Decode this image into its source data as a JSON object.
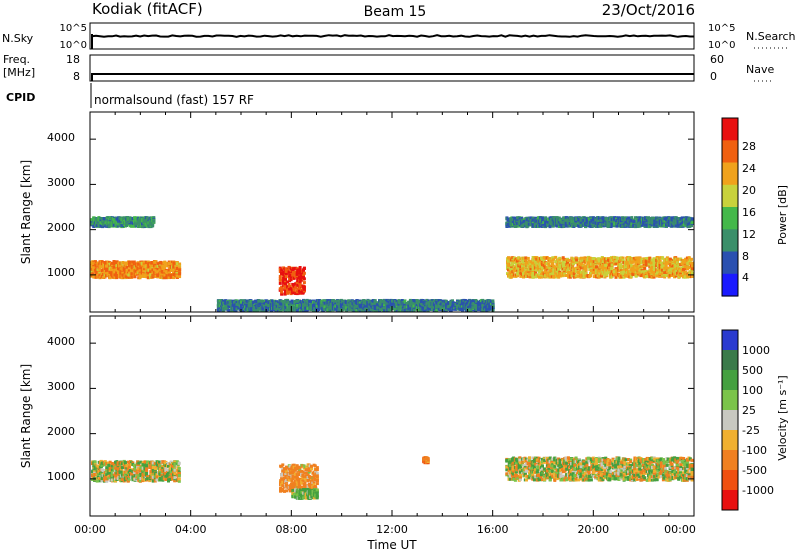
{
  "header": {
    "station": "Kodiak (fitACF)",
    "beam": "Beam 15",
    "date": "23/Oct/2016"
  },
  "strips": {
    "nsky_label": "N.Sky",
    "nsky_ticks": [
      "10^5",
      "10^0"
    ],
    "nsearch_label": "N.Search",
    "nsearch_ticks": [
      "10^5",
      "10^0"
    ],
    "freq_label_1": "Freq.",
    "freq_label_2": "[MHz]",
    "freq_ticks": [
      "18",
      "8"
    ],
    "nave_label": "Nave",
    "nave_ticks": [
      "60",
      "0"
    ],
    "cpid_label": "CPID",
    "cpid_text": "normalsound (fast) 157 RF"
  },
  "power_panel": {
    "ylabel": "Slant Range [km]",
    "yticks": [
      "4000",
      "3000",
      "2000",
      "1000"
    ],
    "colorbar_label": "Power [dB]",
    "colorbar_ticks": [
      "28",
      "24",
      "20",
      "16",
      "12",
      "8",
      "4"
    ],
    "colors": [
      "#1a1aff",
      "#2a50b0",
      "#3a8f6a",
      "#44b84a",
      "#c8d23c",
      "#f0a21c",
      "#f06010",
      "#e81010"
    ]
  },
  "velocity_panel": {
    "ylabel": "Slant Range [km]",
    "yticks": [
      "4000",
      "3000",
      "2000",
      "1000"
    ],
    "colorbar_label": "Velocity [m s⁻¹]",
    "colorbar_ticks": [
      "1000",
      "500",
      "100",
      "25",
      "-25",
      "-100",
      "-500",
      "-1000"
    ],
    "colors": [
      "#2a3acf",
      "#3a7a4a",
      "#44a040",
      "#7bc44a",
      "#c8c8c0",
      "#f0b030",
      "#f08020",
      "#f05010",
      "#e81010"
    ]
  },
  "xaxis": {
    "label": "Time UT",
    "ticks": [
      "00:00",
      "04:00",
      "08:00",
      "12:00",
      "16:00",
      "20:00",
      "00:00"
    ]
  },
  "chart_data": [
    {
      "type": "heatmap",
      "name": "",
      "title": "",
      "xlabel": "Time UT",
      "ylabel": "Slant Range [km]",
      "xlim": [
        0,
        24
      ],
      "ylim": [
        180,
        4600
      ],
      "value_label": "Power [dB]",
      "zlim": [
        0,
        30
      ],
      "regions": [
        {
          "t": [
            0.0,
            3.5
          ],
          "r_center": 1150,
          "r_halfwidth": 180,
          "value": 22
        },
        {
          "t": [
            0.0,
            2.5
          ],
          "r_center": 2200,
          "r_halfwidth": 100,
          "value": 10
        },
        {
          "t": [
            7.5,
            8.5
          ],
          "r_center": 900,
          "r_halfwidth": 300,
          "value": 27
        },
        {
          "t": [
            16.5,
            24.0
          ],
          "r_center": 1200,
          "r_halfwidth": 220,
          "value": 20
        },
        {
          "t": [
            16.5,
            24.0
          ],
          "r_center": 2200,
          "r_halfwidth": 100,
          "value": 8
        },
        {
          "t": [
            5.0,
            16.0
          ],
          "r_center": 350,
          "r_halfwidth": 120,
          "value": 8
        }
      ]
    },
    {
      "type": "heatmap",
      "name": "",
      "title": "",
      "xlabel": "Time UT",
      "ylabel": "Slant Range [km]",
      "xlim": [
        0,
        24
      ],
      "ylim": [
        180,
        4600
      ],
      "value_label": "Velocity [m s-1]",
      "zlim": [
        -1000,
        1000
      ],
      "regions": [
        {
          "t": [
            0.0,
            3.5
          ],
          "r_center": 1200,
          "r_halfwidth": 220,
          "value": 0
        },
        {
          "t": [
            7.5,
            9.0
          ],
          "r_center": 1050,
          "r_halfwidth": 300,
          "value": -200
        },
        {
          "t": [
            8.0,
            9.0
          ],
          "r_center": 700,
          "r_halfwidth": 100,
          "value": 150
        },
        {
          "t": [
            16.5,
            24.0
          ],
          "r_center": 1250,
          "r_halfwidth": 250,
          "value": 0
        },
        {
          "t": [
            13.2,
            13.4
          ],
          "r_center": 1450,
          "r_halfwidth": 60,
          "value": -300
        }
      ]
    }
  ]
}
